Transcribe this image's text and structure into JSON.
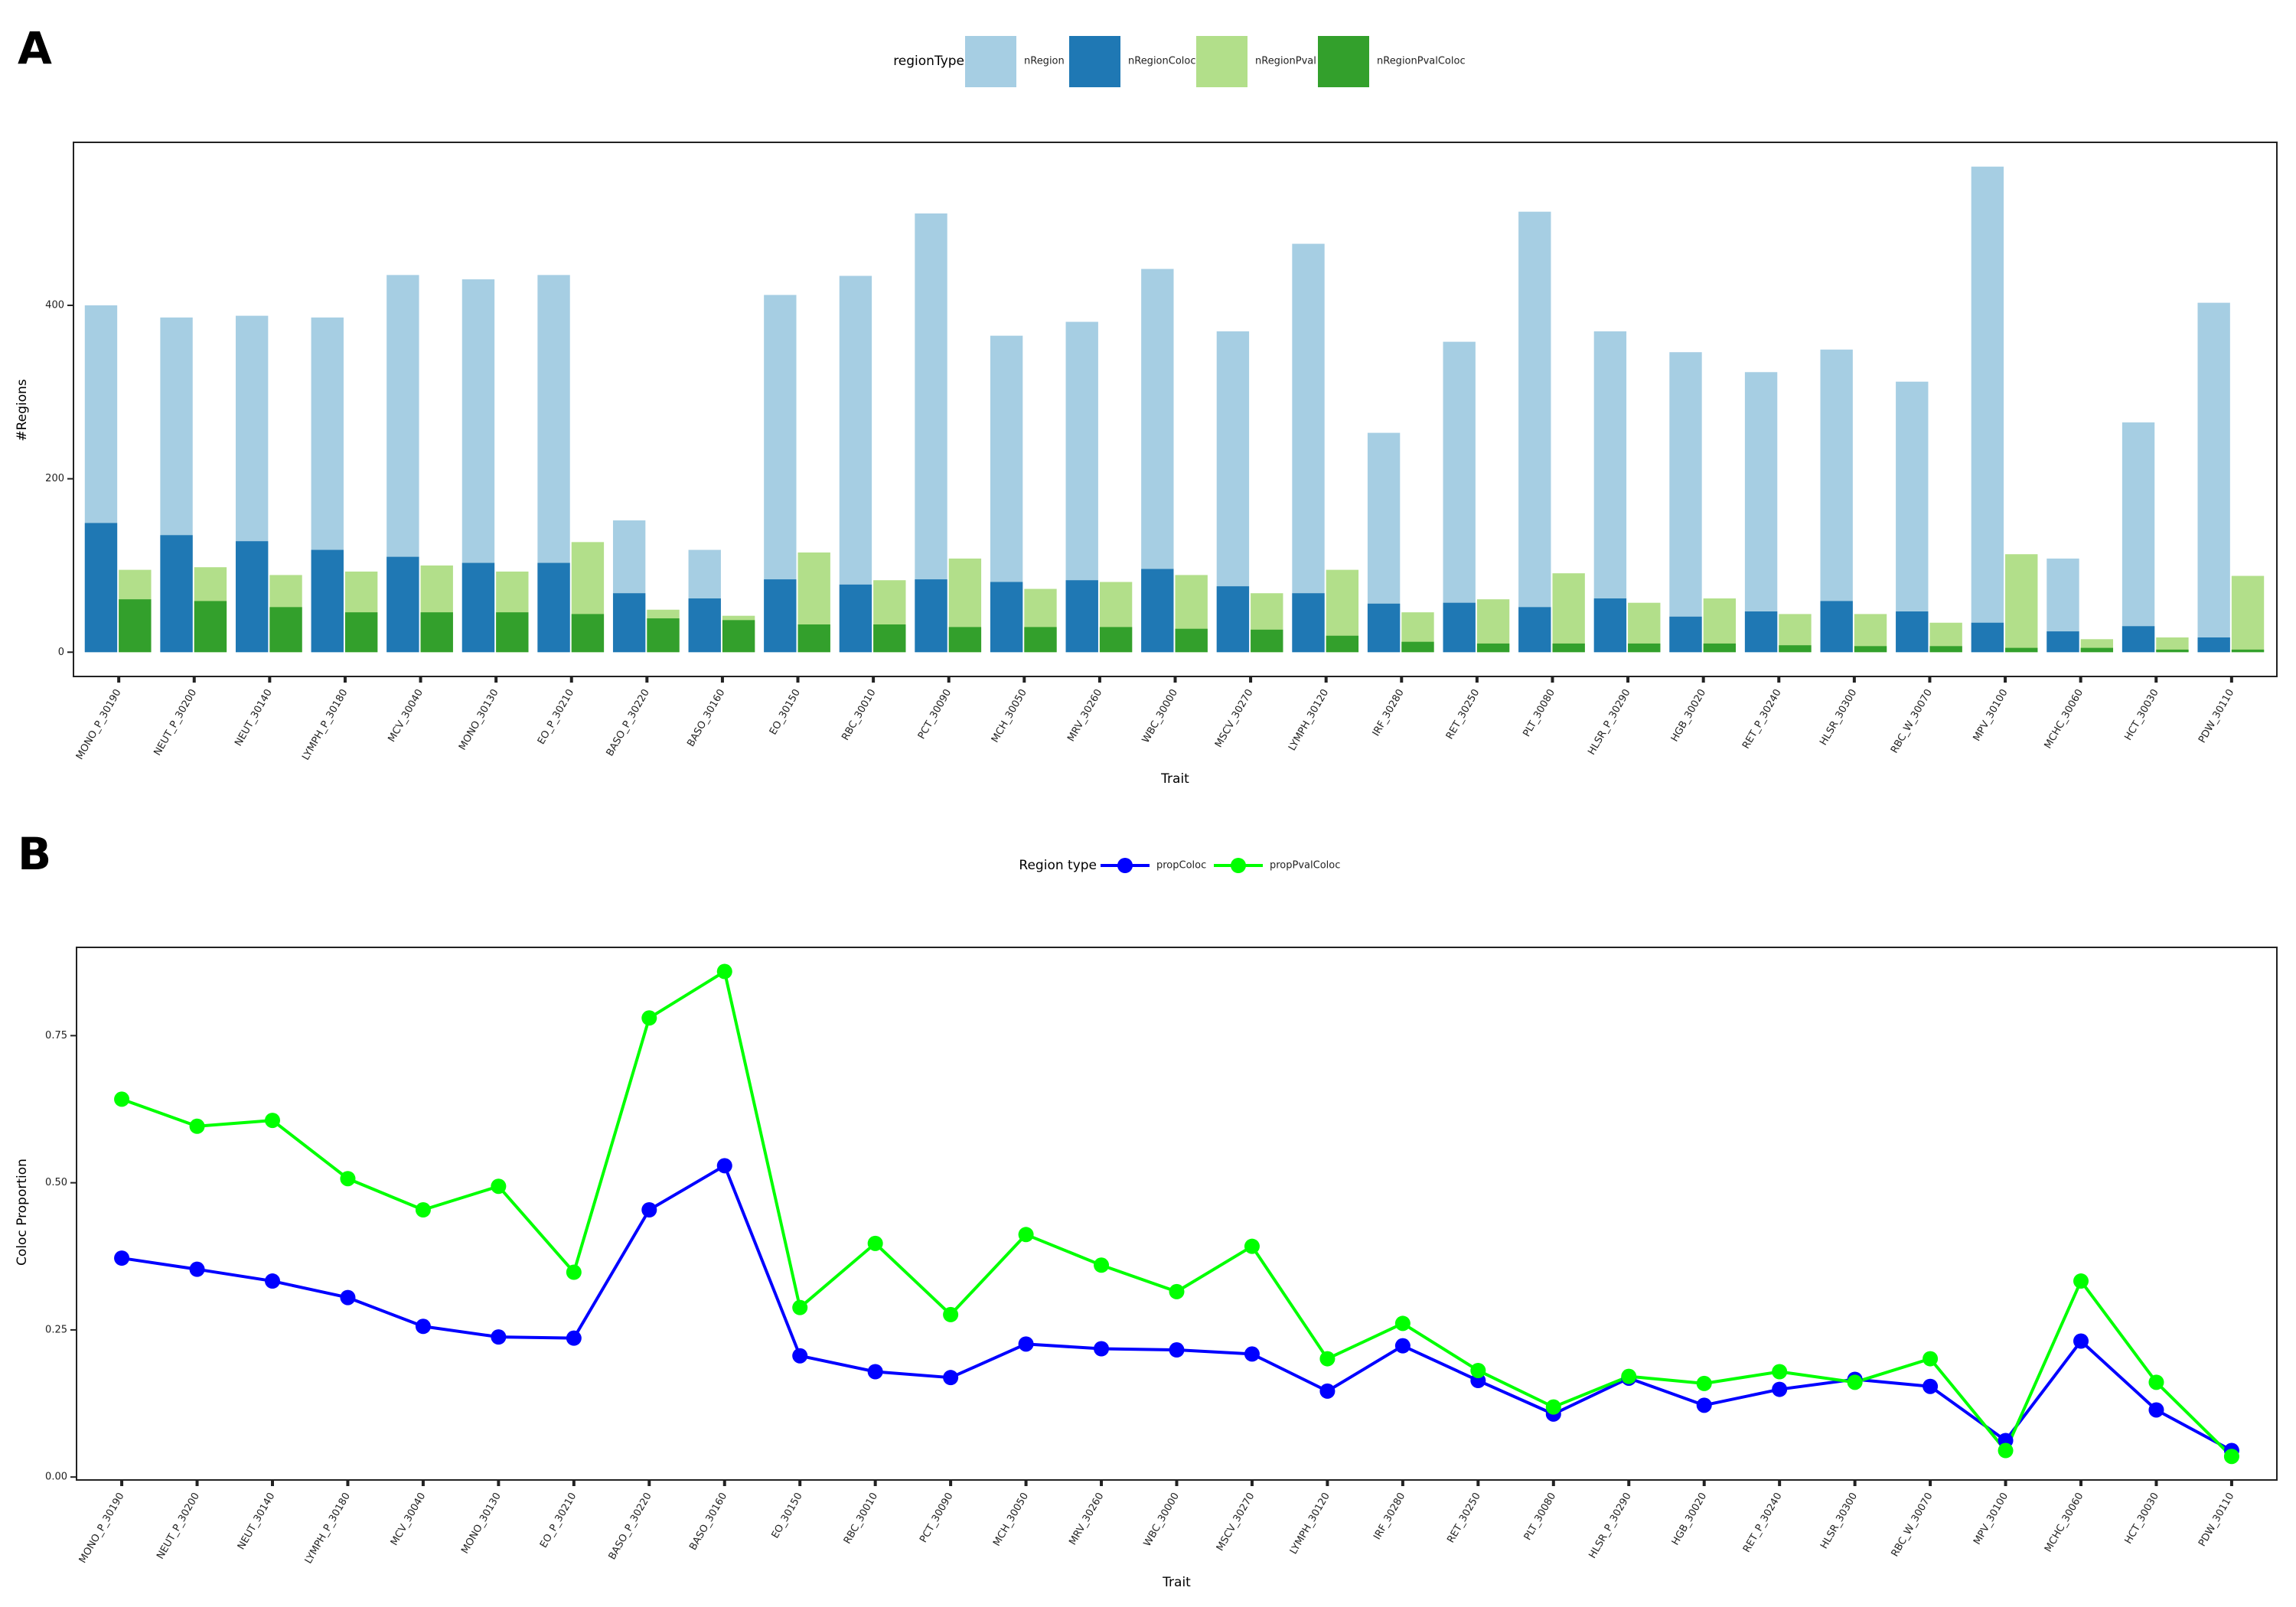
{
  "chart_data": [
    {
      "type": "bar",
      "panel_label": "A",
      "legend_title": "regionType",
      "xlabel": "Trait",
      "ylabel": "#Regions",
      "categories": [
        "MONO_P_30190",
        "NEUT_P_30200",
        "NEUT_30140",
        "LYMPH_P_30180",
        "MCV_30040",
        "MONO_30130",
        "EO_P_30210",
        "BASO_P_30220",
        "BASO_30160",
        "EO_30150",
        "RBC_30010",
        "PCT_30090",
        "MCH_30050",
        "MRV_30260",
        "WBC_30000",
        "MSCV_30270",
        "LYMPH_30120",
        "IRF_30280",
        "RET_30250",
        "PLT_30080",
        "HLSR_P_30290",
        "HGB_30020",
        "RET_P_30240",
        "HLSR_30300",
        "RBC_W_30070",
        "MPV_30100",
        "MCHC_30060",
        "HCT_30030",
        "PDW_30110"
      ],
      "series": [
        {
          "name": "nRegion",
          "color": "#a6cee3",
          "values": [
            400,
            386,
            388,
            386,
            435,
            430,
            435,
            152,
            118,
            412,
            434,
            506,
            365,
            381,
            442,
            370,
            471,
            253,
            358,
            508,
            370,
            346,
            323,
            349,
            312,
            560,
            108,
            265,
            403
          ]
        },
        {
          "name": "nRegionColoc",
          "color": "#1f78b4",
          "values": [
            149,
            135,
            128,
            118,
            110,
            103,
            103,
            68,
            62,
            84,
            78,
            84,
            81,
            83,
            96,
            76,
            68,
            56,
            57,
            52,
            62,
            41,
            47,
            59,
            47,
            34,
            24,
            30,
            17
          ]
        },
        {
          "name": "nRegionPval",
          "color": "#b2df8a",
          "values": [
            95,
            98,
            89,
            93,
            100,
            93,
            127,
            49,
            42,
            115,
            83,
            108,
            73,
            81,
            89,
            68,
            95,
            46,
            61,
            91,
            57,
            62,
            44,
            44,
            34,
            113,
            15,
            17,
            88
          ]
        },
        {
          "name": "nRegionPvalColoc",
          "color": "#33a02c",
          "values": [
            61,
            59,
            52,
            46,
            46,
            46,
            44,
            39,
            37,
            32,
            32,
            29,
            29,
            29,
            27,
            26,
            19,
            12,
            10,
            10,
            10,
            10,
            8,
            7,
            7,
            5,
            5,
            3,
            3
          ]
        }
      ],
      "ylim": [
        -28,
        588
      ],
      "yticks": [
        0,
        200,
        400
      ]
    },
    {
      "type": "line",
      "panel_label": "B",
      "legend_title": "Region type",
      "xlabel": "Trait",
      "ylabel": "Coloc Proportion",
      "categories": [
        "MONO_P_30190",
        "NEUT_P_30200",
        "NEUT_30140",
        "LYMPH_P_30180",
        "MCV_30040",
        "MONO_30130",
        "EO_P_30210",
        "BASO_P_30220",
        "BASO_30160",
        "EO_30150",
        "RBC_30010",
        "PCT_30090",
        "MCH_30050",
        "MRV_30260",
        "WBC_30000",
        "MSCV_30270",
        "LYMPH_30120",
        "IRF_30280",
        "RET_30250",
        "PLT_30080",
        "HLSR_P_30290",
        "HGB_30020",
        "RET_P_30240",
        "HLSR_30300",
        "RBC_W_30070",
        "MPV_30100",
        "MCHC_30060",
        "HCT_30030",
        "PDW_30110"
      ],
      "series": [
        {
          "name": "propColoc",
          "color": "#0000ff",
          "values": [
            0.372,
            0.353,
            0.333,
            0.305,
            0.256,
            0.238,
            0.236,
            0.454,
            0.529,
            0.206,
            0.179,
            0.169,
            0.226,
            0.218,
            0.216,
            0.209,
            0.146,
            0.223,
            0.164,
            0.107,
            0.168,
            0.122,
            0.149,
            0.166,
            0.154,
            0.062,
            0.231,
            0.114,
            0.045
          ]
        },
        {
          "name": "propPvalColoc",
          "color": "#00ff00",
          "values": [
            0.642,
            0.596,
            0.606,
            0.507,
            0.454,
            0.494,
            0.348,
            0.78,
            0.859,
            0.288,
            0.397,
            0.276,
            0.412,
            0.36,
            0.315,
            0.392,
            0.201,
            0.261,
            0.181,
            0.119,
            0.171,
            0.159,
            0.179,
            0.161,
            0.201,
            0.045,
            0.333,
            0.161,
            0.035
          ]
        }
      ],
      "ylim": [
        -0.005,
        0.9
      ],
      "yticks": [
        {
          "value": 0,
          "label": "0.00"
        },
        {
          "value": 0.25,
          "label": "0.25"
        },
        {
          "value": 0.5,
          "label": "0.50"
        },
        {
          "value": 0.75,
          "label": "0.75"
        }
      ]
    }
  ]
}
